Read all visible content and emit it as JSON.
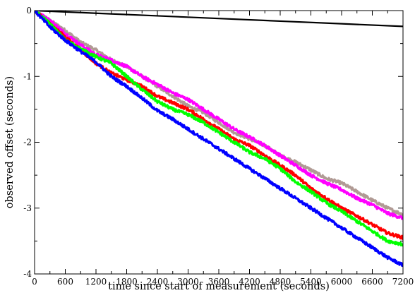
{
  "chart_data": {
    "type": "line",
    "title": "",
    "xlabel": "time since start of measurement (seconds)",
    "ylabel": "observed offset (seconds)",
    "xlim": [
      0,
      7200
    ],
    "ylim": [
      -4,
      0
    ],
    "grid": false,
    "legend": "none",
    "x_ticks": [
      0,
      600,
      1200,
      1800,
      2400,
      3000,
      3600,
      4200,
      4800,
      5400,
      6000,
      6600,
      7200
    ],
    "y_ticks": [
      0,
      -1,
      -2,
      -3,
      -4
    ],
    "series": [
      {
        "color": "#000000",
        "x": [
          0,
          1200,
          2400,
          3600,
          4800,
          6000,
          7200
        ],
        "y": [
          0,
          -0.04,
          -0.08,
          -0.12,
          -0.16,
          -0.2,
          -0.24
        ]
      },
      {
        "color": "#b09a94",
        "x": [
          0,
          300,
          600,
          900,
          1200,
          1500,
          1800,
          2100,
          2400,
          2700,
          3000,
          3300,
          3600,
          3900,
          4200,
          4500,
          4800,
          5100,
          5400,
          5700,
          6000,
          6300,
          6600,
          6900,
          7200
        ],
        "y": [
          0,
          -0.15,
          -0.3,
          -0.48,
          -0.6,
          -0.75,
          -0.85,
          -1.0,
          -1.15,
          -1.3,
          -1.45,
          -1.55,
          -1.7,
          -1.85,
          -1.95,
          -2.05,
          -2.2,
          -2.3,
          -2.42,
          -2.55,
          -2.62,
          -2.75,
          -2.88,
          -3.0,
          -3.1
        ]
      },
      {
        "color": "#ff00ff",
        "x": [
          0,
          300,
          600,
          900,
          1200,
          1500,
          1800,
          2100,
          2400,
          2700,
          3000,
          3300,
          3600,
          3900,
          4200,
          4500,
          4800,
          5100,
          5400,
          5700,
          6000,
          6300,
          6600,
          6900,
          7200
        ],
        "y": [
          0,
          -0.15,
          -0.35,
          -0.52,
          -0.67,
          -0.75,
          -0.85,
          -1.0,
          -1.12,
          -1.25,
          -1.35,
          -1.5,
          -1.65,
          -1.8,
          -1.92,
          -2.05,
          -2.2,
          -2.35,
          -2.5,
          -2.62,
          -2.72,
          -2.85,
          -2.95,
          -3.08,
          -3.15
        ]
      },
      {
        "color": "#ff0000",
        "x": [
          0,
          300,
          600,
          900,
          1200,
          1500,
          1800,
          2100,
          2400,
          2700,
          3000,
          3300,
          3600,
          3900,
          4200,
          4500,
          4800,
          5100,
          5400,
          5700,
          6000,
          6300,
          6600,
          6900,
          7200
        ],
        "y": [
          0,
          -0.2,
          -0.4,
          -0.6,
          -0.8,
          -0.95,
          -1.05,
          -1.15,
          -1.3,
          -1.4,
          -1.5,
          -1.65,
          -1.8,
          -1.95,
          -2.05,
          -2.2,
          -2.35,
          -2.5,
          -2.7,
          -2.85,
          -3.0,
          -3.12,
          -3.25,
          -3.38,
          -3.45
        ]
      },
      {
        "color": "#00ff00",
        "x": [
          0,
          300,
          600,
          900,
          1200,
          1500,
          1800,
          2100,
          2400,
          2700,
          3000,
          3300,
          3600,
          3900,
          4200,
          4500,
          4800,
          5100,
          5400,
          5700,
          6000,
          6300,
          6600,
          6900,
          7200
        ],
        "y": [
          0,
          -0.2,
          -0.45,
          -0.58,
          -0.7,
          -0.8,
          -1.0,
          -1.2,
          -1.38,
          -1.5,
          -1.58,
          -1.7,
          -1.85,
          -2.0,
          -2.15,
          -2.25,
          -2.4,
          -2.6,
          -2.75,
          -2.92,
          -3.05,
          -3.2,
          -3.35,
          -3.5,
          -3.55
        ]
      },
      {
        "color": "#0000ff",
        "x": [
          0,
          300,
          600,
          900,
          1200,
          1500,
          1800,
          2100,
          2400,
          2700,
          3000,
          3300,
          3600,
          3900,
          4200,
          4500,
          4800,
          5100,
          5400,
          5700,
          6000,
          6300,
          6600,
          6900,
          7200
        ],
        "y": [
          0,
          -0.25,
          -0.45,
          -0.62,
          -0.78,
          -1.0,
          -1.15,
          -1.33,
          -1.52,
          -1.65,
          -1.8,
          -1.95,
          -2.1,
          -2.25,
          -2.4,
          -2.55,
          -2.7,
          -2.85,
          -3.0,
          -3.15,
          -3.3,
          -3.45,
          -3.6,
          -3.75,
          -3.87
        ]
      }
    ]
  }
}
